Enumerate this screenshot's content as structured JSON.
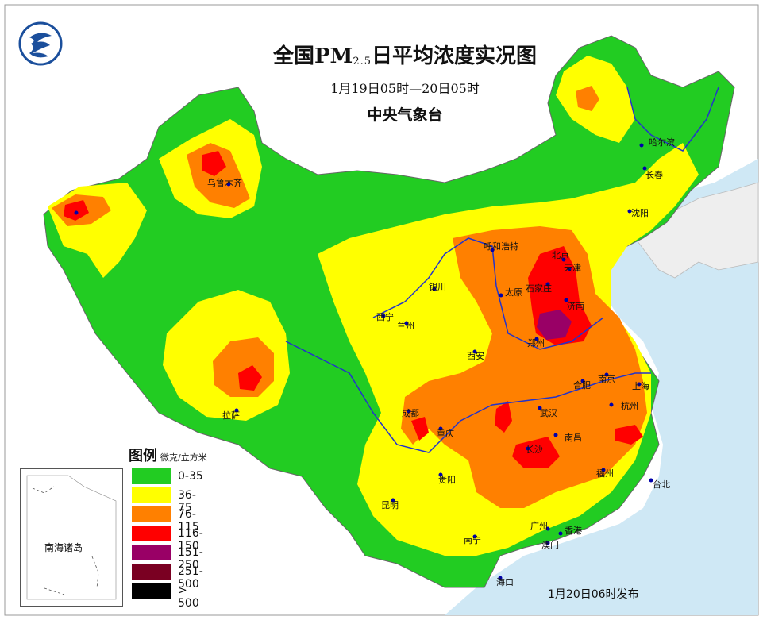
{
  "title": {
    "main": "全国PM",
    "subscript": "2.5",
    "rest": "日平均浓度实况图",
    "time_range": "1月19日05时—20日05时",
    "issuer": "中央气象台"
  },
  "release_time": "1月20日06时发布",
  "legend": {
    "title": "图例",
    "unit": "微克/立方米",
    "classes": [
      {
        "label": "0-35",
        "color": "#22cc22"
      },
      {
        "label": "36-75",
        "color": "#ffff00"
      },
      {
        "label": "76-115",
        "color": "#ff8000"
      },
      {
        "label": "116-150",
        "color": "#ff0000"
      },
      {
        "label": "151-250",
        "color": "#990066"
      },
      {
        "label": "251-500",
        "color": "#7a0022"
      },
      {
        "label": "> 500",
        "color": "#000000"
      }
    ]
  },
  "inset": {
    "label": "南海诸岛"
  },
  "cities": {
    "urumqi": "乌鲁木齐",
    "harbin": "哈尔滨",
    "changchun": "长春",
    "shenyang": "沈阳",
    "hohhot": "呼和浩特",
    "beijing": "北京",
    "tianjin": "天津",
    "shijiazhuang": "石家庄",
    "taiyuan": "太原",
    "yinchuan": "银川",
    "xining": "西宁",
    "lanzhou": "兰州",
    "jinan": "济南",
    "zhengzhou": "郑州",
    "xian": "西安",
    "hefei": "合肥",
    "nanjing": "南京",
    "shanghai": "上海",
    "hangzhou": "杭州",
    "wuhan": "武汉",
    "chengdu": "成都",
    "chongqing": "重庆",
    "lhasa": "拉萨",
    "nanchang": "南昌",
    "changsha": "长沙",
    "guiyang": "贵阳",
    "kunming": "昆明",
    "fuzhou": "福州",
    "taipei": "台北",
    "nanning": "南宁",
    "guangzhou": "广州",
    "hongkong": "香港",
    "macau": "澳门",
    "haikou": "海口"
  }
}
